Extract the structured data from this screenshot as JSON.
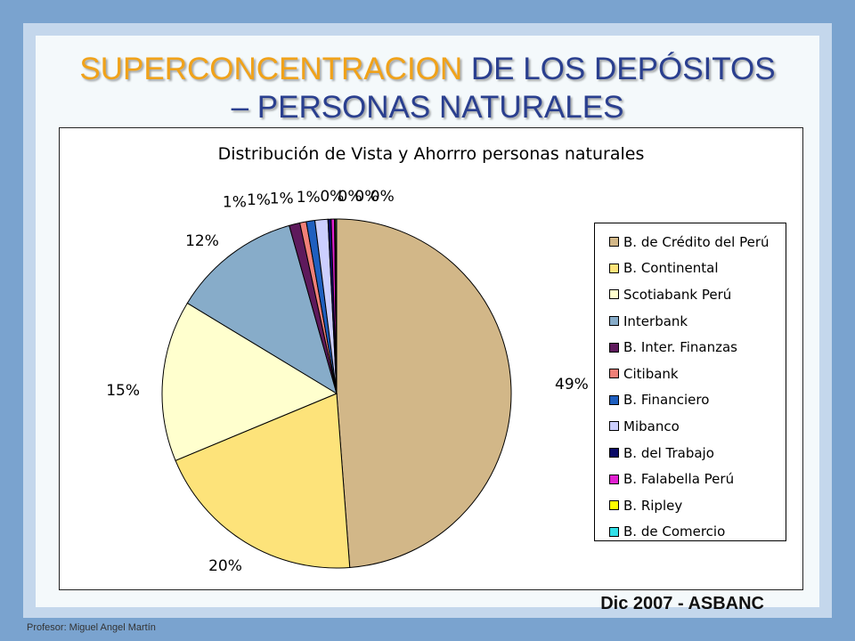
{
  "slide": {
    "title_accent": "SUPERCONCENTRACION",
    "title_rest_line1": " DE LOS DEPÓSITOS",
    "title_line2": "– PERSONAS NATURALES",
    "source": "Dic 2007 - ASBANC",
    "credit": "Profesor: Miguel Angel Martín"
  },
  "colors": {
    "title_blue": "#2a3f8f",
    "title_orange": "#f0a21a",
    "slide_border": "#7aa3cf"
  },
  "chart_data": {
    "type": "pie",
    "title": "Distribución de Vista y Ahorrro personas naturales",
    "legend_position": "right",
    "slices": [
      {
        "name": "B. de Crédito del Perú",
        "value": 49,
        "label": "49%",
        "color": "#d2b788"
      },
      {
        "name": "B. Continental",
        "value": 20,
        "label": "20%",
        "color": "#fde37a"
      },
      {
        "name": "Scotiabank Perú",
        "value": 15,
        "label": "15%",
        "color": "#ffffce"
      },
      {
        "name": "Interbank",
        "value": 12,
        "label": "12%",
        "color": "#87acc9"
      },
      {
        "name": "B. Inter. Finanzas",
        "value": 1,
        "label": "1%",
        "color": "#5e1a5c"
      },
      {
        "name": "Citibank",
        "value": 0.6,
        "label": "1%",
        "color": "#f08078"
      },
      {
        "name": "B. Financiero",
        "value": 0.8,
        "label": "1%",
        "color": "#1f5fbf"
      },
      {
        "name": "Mibanco",
        "value": 1.2,
        "label": "1%",
        "color": "#cccfff"
      },
      {
        "name": "B. del Trabajo",
        "value": 0.3,
        "label": "0%",
        "color": "#0a0a66"
      },
      {
        "name": "B. Falabella Perú",
        "value": 0.3,
        "label": "0%",
        "color": "#e020d0"
      },
      {
        "name": "B. Ripley",
        "value": 0.1,
        "label": "0%",
        "color": "#ffff00"
      },
      {
        "name": "B. de Comercio",
        "value": 0.1,
        "label": "0%",
        "color": "#30e0e8"
      }
    ]
  }
}
